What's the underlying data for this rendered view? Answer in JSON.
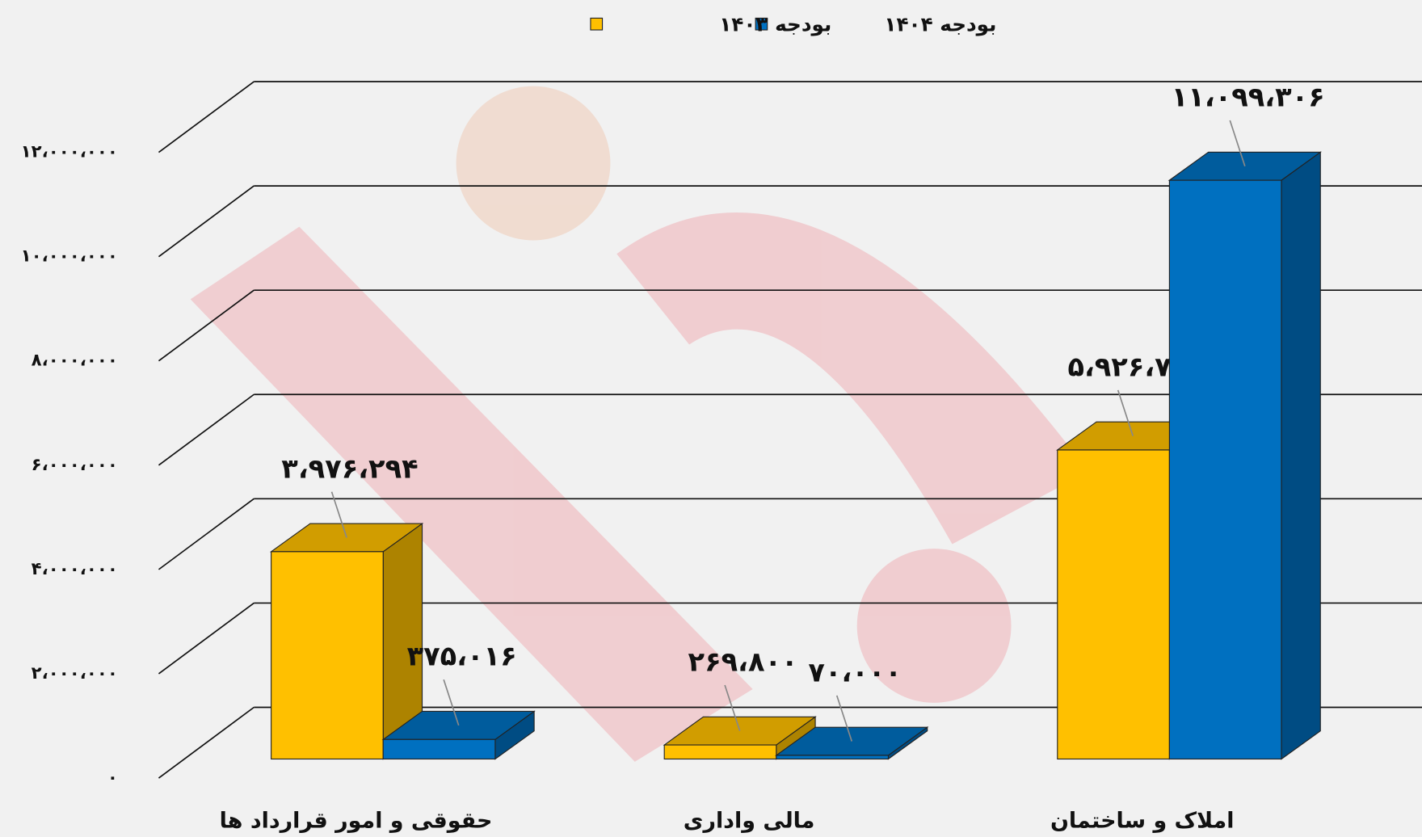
{
  "chart_data": {
    "type": "bar3d",
    "categories": [
      "حقوقی و امور قرارداد ها",
      "مالی واداری",
      "املاک و ساختمان"
    ],
    "series": [
      {
        "name": "بودجه ۱۴۰۳",
        "color": "#ffc000",
        "values": [
          3976294,
          269800,
          5926750
        ],
        "value_labels": [
          "۳،۹۷۶،۲۹۴",
          "۲۶۹،۸۰۰",
          "۵،۹۲۶،۷۵۰"
        ]
      },
      {
        "name": "بودجه ۱۴۰۴",
        "color": "#0070c0",
        "values": [
          375016,
          70000,
          11099306
        ],
        "value_labels": [
          "۳۷۵،۰۱۶",
          "۷۰،۰۰۰",
          "۱۱،۰۹۹،۳۰۶"
        ]
      }
    ],
    "ylim": [
      0,
      12000000
    ],
    "yticks": [
      {
        "value": 0,
        "label": "۰"
      },
      {
        "value": 2000000,
        "label": "۲،۰۰۰،۰۰۰"
      },
      {
        "value": 4000000,
        "label": "۴،۰۰۰،۰۰۰"
      },
      {
        "value": 6000000,
        "label": "۶،۰۰۰،۰۰۰"
      },
      {
        "value": 8000000,
        "label": "۸،۰۰۰،۰۰۰"
      },
      {
        "value": 10000000,
        "label": "۱۰،۰۰۰،۰۰۰"
      },
      {
        "value": 12000000,
        "label": "۱۲،۰۰۰،۰۰۰"
      }
    ],
    "grid": true,
    "legend": "top"
  }
}
